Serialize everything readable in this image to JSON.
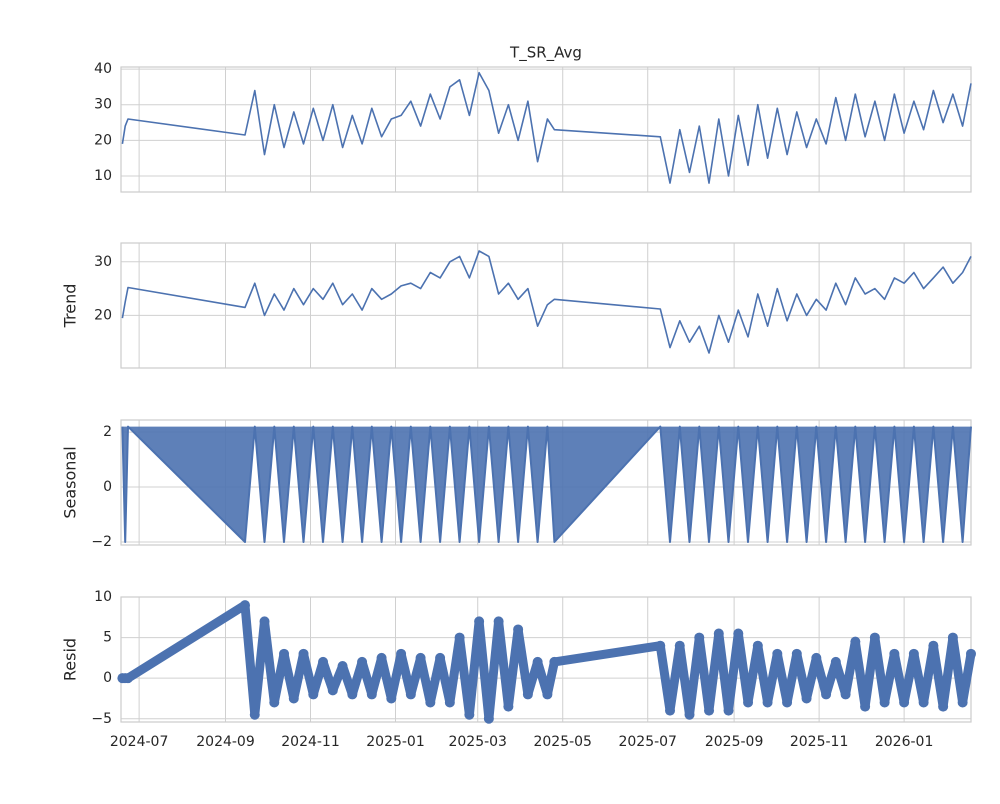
{
  "shared_x": {
    "xlim": [
      "2024-06-18",
      "2026-02-18"
    ],
    "xticks": [
      {
        "value": "2024-07-01",
        "label": "2024-07"
      },
      {
        "value": "2024-09-01",
        "label": "2024-09"
      },
      {
        "value": "2024-11-01",
        "label": "2024-11"
      },
      {
        "value": "2025-01-01",
        "label": "2025-01"
      },
      {
        "value": "2025-03-01",
        "label": "2025-03"
      },
      {
        "value": "2025-05-01",
        "label": "2025-05"
      },
      {
        "value": "2025-07-01",
        "label": "2025-07"
      },
      {
        "value": "2025-09-01",
        "label": "2025-09"
      },
      {
        "value": "2025-11-01",
        "label": "2025-11"
      },
      {
        "value": "2026-01-01",
        "label": "2026-01"
      }
    ]
  },
  "chart_data": [
    {
      "type": "line",
      "title": "T_SR_Avg",
      "color": "#4c72b0",
      "ylim": [
        5.5,
        40.6
      ],
      "yticks": [
        10,
        20,
        30,
        40
      ],
      "grid": true,
      "x": [
        "2024-06-19",
        "2024-06-21",
        "2024-06-23",
        "2024-09-15",
        "2024-09-22",
        "2024-09-29",
        "2024-10-06",
        "2024-10-13",
        "2024-10-20",
        "2024-10-27",
        "2024-11-03",
        "2024-11-10",
        "2024-11-17",
        "2024-11-24",
        "2024-12-01",
        "2024-12-08",
        "2024-12-15",
        "2024-12-22",
        "2024-12-29",
        "2025-01-05",
        "2025-01-12",
        "2025-01-19",
        "2025-01-26",
        "2025-02-02",
        "2025-02-09",
        "2025-02-16",
        "2025-02-23",
        "2025-03-02",
        "2025-03-09",
        "2025-03-16",
        "2025-03-23",
        "2025-03-30",
        "2025-04-06",
        "2025-04-13",
        "2025-04-20",
        "2025-04-25",
        "2025-07-10",
        "2025-07-17",
        "2025-07-24",
        "2025-07-31",
        "2025-08-07",
        "2025-08-14",
        "2025-08-21",
        "2025-08-28",
        "2025-09-04",
        "2025-09-11",
        "2025-09-18",
        "2025-09-25",
        "2025-10-02",
        "2025-10-09",
        "2025-10-16",
        "2025-10-23",
        "2025-10-30",
        "2025-11-06",
        "2025-11-13",
        "2025-11-20",
        "2025-11-27",
        "2025-12-04",
        "2025-12-11",
        "2025-12-18",
        "2025-12-25",
        "2026-01-01",
        "2026-01-08",
        "2026-01-15",
        "2026-01-22",
        "2026-01-29",
        "2026-02-05",
        "2026-02-12",
        "2026-02-18"
      ],
      "values": [
        19,
        24,
        26,
        21.5,
        34,
        16,
        30,
        18,
        28,
        19,
        29,
        20,
        30,
        18,
        27,
        19,
        29,
        21,
        26,
        27,
        31,
        24,
        33,
        26,
        35,
        37,
        27,
        39,
        34,
        22,
        30,
        20,
        31,
        14,
        26,
        23,
        21,
        8,
        23,
        11,
        24,
        8,
        26,
        10,
        27,
        13,
        30,
        15,
        29,
        16,
        28,
        18,
        26,
        19,
        32,
        20,
        33,
        21,
        31,
        20,
        33,
        22,
        31,
        23,
        34,
        25,
        33,
        24,
        36
      ]
    },
    {
      "type": "line",
      "ylabel": "Trend",
      "color": "#4c72b0",
      "ylim": [
        10.2,
        33.5
      ],
      "yticks": [
        20,
        30
      ],
      "grid": true,
      "x": [
        "2024-06-19",
        "2024-06-21",
        "2024-06-23",
        "2024-09-15",
        "2024-09-22",
        "2024-09-29",
        "2024-10-06",
        "2024-10-13",
        "2024-10-20",
        "2024-10-27",
        "2024-11-03",
        "2024-11-10",
        "2024-11-17",
        "2024-11-24",
        "2024-12-01",
        "2024-12-08",
        "2024-12-15",
        "2024-12-22",
        "2024-12-29",
        "2025-01-05",
        "2025-01-12",
        "2025-01-19",
        "2025-01-26",
        "2025-02-02",
        "2025-02-09",
        "2025-02-16",
        "2025-02-23",
        "2025-03-02",
        "2025-03-09",
        "2025-03-16",
        "2025-03-23",
        "2025-03-30",
        "2025-04-06",
        "2025-04-13",
        "2025-04-20",
        "2025-04-25",
        "2025-07-10",
        "2025-07-17",
        "2025-07-24",
        "2025-07-31",
        "2025-08-07",
        "2025-08-14",
        "2025-08-21",
        "2025-08-28",
        "2025-09-04",
        "2025-09-11",
        "2025-09-18",
        "2025-09-25",
        "2025-10-02",
        "2025-10-09",
        "2025-10-16",
        "2025-10-23",
        "2025-10-30",
        "2025-11-06",
        "2025-11-13",
        "2025-11-20",
        "2025-11-27",
        "2025-12-04",
        "2025-12-11",
        "2025-12-18",
        "2025-12-25",
        "2026-01-01",
        "2026-01-08",
        "2026-01-15",
        "2026-01-22",
        "2026-01-29",
        "2026-02-05",
        "2026-02-12",
        "2026-02-18"
      ],
      "values": [
        19.5,
        22.5,
        25.2,
        21.5,
        26,
        20,
        24,
        21,
        25,
        22,
        25,
        23,
        26,
        22,
        24,
        21,
        25,
        23,
        24,
        25.5,
        26,
        25,
        28,
        27,
        30,
        31,
        27,
        32,
        31,
        24,
        26,
        23,
        25,
        18,
        22,
        23,
        21.2,
        14,
        19,
        15,
        18,
        13,
        20,
        15,
        21,
        16,
        24,
        18,
        25,
        19,
        24,
        20,
        23,
        21,
        26,
        22,
        27,
        24,
        25,
        23,
        27,
        26,
        28,
        25,
        27,
        29,
        26,
        28,
        31
      ]
    },
    {
      "type": "line",
      "ylabel": "Seasonal",
      "color": "#4c72b0",
      "fill": true,
      "ylim": [
        -2.11,
        2.44
      ],
      "yticks": [
        {
          "value": -2,
          "label": "−2"
        },
        0,
        2
      ],
      "grid": true,
      "x": [
        "2024-06-19",
        "2024-06-21",
        "2024-06-23",
        "2024-09-15",
        "2024-09-22",
        "2024-09-29",
        "2024-10-06",
        "2024-10-13",
        "2024-10-20",
        "2024-10-27",
        "2024-11-03",
        "2024-11-10",
        "2024-11-17",
        "2024-11-24",
        "2024-12-01",
        "2024-12-08",
        "2024-12-15",
        "2024-12-22",
        "2024-12-29",
        "2025-01-05",
        "2025-01-12",
        "2025-01-19",
        "2025-01-26",
        "2025-02-02",
        "2025-02-09",
        "2025-02-16",
        "2025-02-23",
        "2025-03-02",
        "2025-03-09",
        "2025-03-16",
        "2025-03-23",
        "2025-03-30",
        "2025-04-06",
        "2025-04-13",
        "2025-04-20",
        "2025-04-25",
        "2025-07-10",
        "2025-07-17",
        "2025-07-24",
        "2025-07-31",
        "2025-08-07",
        "2025-08-14",
        "2025-08-21",
        "2025-08-28",
        "2025-09-04",
        "2025-09-11",
        "2025-09-18",
        "2025-09-25",
        "2025-10-02",
        "2025-10-09",
        "2025-10-16",
        "2025-10-23",
        "2025-10-30",
        "2025-11-06",
        "2025-11-13",
        "2025-11-20",
        "2025-11-27",
        "2025-12-04",
        "2025-12-11",
        "2025-12-18",
        "2025-12-25",
        "2026-01-01",
        "2026-01-08",
        "2026-01-15",
        "2026-01-22",
        "2026-01-29",
        "2026-02-05",
        "2026-02-12",
        "2026-02-18"
      ],
      "values": [
        2.2,
        -2,
        2.2,
        -2,
        2.2,
        -2,
        2.2,
        -2,
        2.2,
        -2,
        2.2,
        -2,
        2.2,
        -2,
        2.2,
        -2,
        2.2,
        -2,
        2.2,
        -2,
        2.2,
        -2,
        2.2,
        -2,
        2.2,
        -2,
        2.2,
        -2,
        2.2,
        -2,
        2.2,
        -2,
        2.2,
        -2,
        2.2,
        -2,
        2.2,
        -2,
        2.2,
        -2,
        2.2,
        -2,
        2.2,
        -2,
        2.2,
        -2,
        2.2,
        -2,
        2.2,
        -2,
        2.2,
        -2,
        2.2,
        -2,
        2.2,
        -2,
        2.2,
        -2,
        2.2,
        -2,
        2.2,
        -2,
        2.2,
        -2,
        2.2,
        -2,
        2.2,
        -2,
        2.2
      ]
    },
    {
      "type": "scatter",
      "ylabel": "Resid",
      "color": "#4c72b0",
      "ylim": [
        -5.4,
        10
      ],
      "yticks": [
        {
          "value": -5,
          "label": "−5"
        },
        0,
        5,
        10
      ],
      "grid": true,
      "x": [
        "2024-06-19",
        "2024-06-21",
        "2024-06-23",
        "2024-09-15",
        "2024-09-22",
        "2024-09-29",
        "2024-10-06",
        "2024-10-13",
        "2024-10-20",
        "2024-10-27",
        "2024-11-03",
        "2024-11-10",
        "2024-11-17",
        "2024-11-24",
        "2024-12-01",
        "2024-12-08",
        "2024-12-15",
        "2024-12-22",
        "2024-12-29",
        "2025-01-05",
        "2025-01-12",
        "2025-01-19",
        "2025-01-26",
        "2025-02-02",
        "2025-02-09",
        "2025-02-16",
        "2025-02-23",
        "2025-03-02",
        "2025-03-09",
        "2025-03-16",
        "2025-03-23",
        "2025-03-30",
        "2025-04-06",
        "2025-04-13",
        "2025-04-20",
        "2025-04-25",
        "2025-07-10",
        "2025-07-17",
        "2025-07-24",
        "2025-07-31",
        "2025-08-07",
        "2025-08-14",
        "2025-08-21",
        "2025-08-28",
        "2025-09-04",
        "2025-09-11",
        "2025-09-18",
        "2025-09-25",
        "2025-10-02",
        "2025-10-09",
        "2025-10-16",
        "2025-10-23",
        "2025-10-30",
        "2025-11-06",
        "2025-11-13",
        "2025-11-20",
        "2025-11-27",
        "2025-12-04",
        "2025-12-11",
        "2025-12-18",
        "2025-12-25",
        "2026-01-01",
        "2026-01-08",
        "2026-01-15",
        "2026-01-22",
        "2026-01-29",
        "2026-02-05",
        "2026-02-12",
        "2026-02-18"
      ],
      "values": [
        0,
        0,
        0,
        9,
        -4.5,
        7,
        -3,
        3,
        -2.5,
        3,
        -2,
        2,
        -1.5,
        1.5,
        -2,
        2,
        -2,
        2.5,
        -2.5,
        3,
        -2,
        2.5,
        -3,
        2.5,
        -3,
        5,
        -4.5,
        7,
        -5,
        7,
        -3.5,
        6,
        -2,
        2,
        -2,
        2,
        4,
        -4,
        4,
        -4.5,
        5,
        -4,
        5.5,
        -4,
        5.5,
        -3,
        4,
        -3,
        3,
        -3,
        3,
        -2.5,
        2.5,
        -2,
        2,
        -2,
        4.5,
        -3.5,
        5,
        -3,
        3,
        -3,
        3,
        -3,
        4,
        -3.5,
        5,
        -3,
        3
      ]
    }
  ]
}
